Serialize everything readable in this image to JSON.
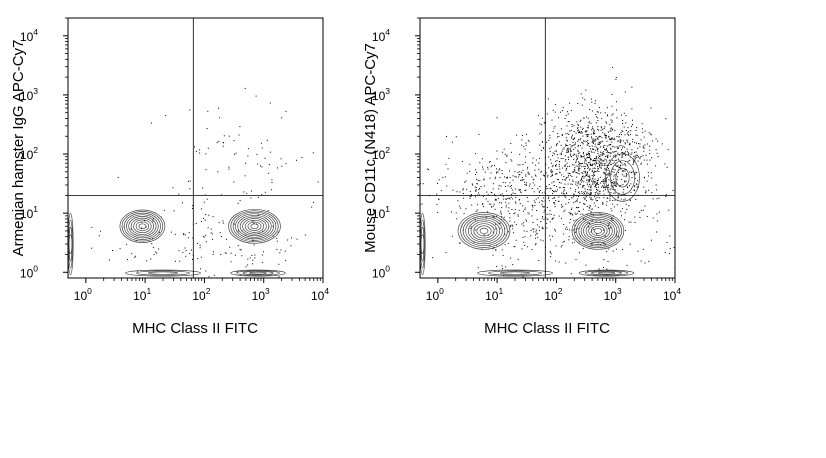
{
  "chart_data": [
    {
      "type": "contour",
      "xlabel": "MHC Class II FITC",
      "ylabel": "Armenian hamster IgG APC-Cy7",
      "x_scale": "log",
      "y_scale": "log",
      "xlim": [
        0.5,
        10000
      ],
      "ylim": [
        0.8,
        20000
      ],
      "x_ticks": [
        {
          "base": "10",
          "exp": "0",
          "value": 1
        },
        {
          "base": "10",
          "exp": "1",
          "value": 10
        },
        {
          "base": "10",
          "exp": "2",
          "value": 100
        },
        {
          "base": "10",
          "exp": "3",
          "value": 1000
        },
        {
          "base": "10",
          "exp": "4",
          "value": 10000
        }
      ],
      "y_ticks": [
        {
          "base": "10",
          "exp": "0",
          "value": 1
        },
        {
          "base": "10",
          "exp": "1",
          "value": 10
        },
        {
          "base": "10",
          "exp": "2",
          "value": 100
        },
        {
          "base": "10",
          "exp": "3",
          "value": 1000
        },
        {
          "base": "10",
          "exp": "4",
          "value": 10000
        }
      ],
      "gate": {
        "x": 65,
        "y": 20
      },
      "populations": [
        {
          "x": 9,
          "y": 6,
          "sx": 0.33,
          "sy": 0.24,
          "rings": 9
        },
        {
          "x": 700,
          "y": 6,
          "sx": 0.38,
          "sy": 0.25,
          "rings": 10
        },
        {
          "x": 20,
          "y": 0.97,
          "sx": 0.55,
          "sy": 0.045,
          "rings": 3
        },
        {
          "x": 800,
          "y": 0.97,
          "sx": 0.4,
          "sy": 0.045,
          "rings": 4
        },
        {
          "x": 0.55,
          "y": 3,
          "sx": 0.04,
          "sy": 0.45,
          "rings": 4
        }
      ],
      "scatter": [
        {
          "x": 50,
          "y": 30,
          "sx": 1.0,
          "sy": 0.8,
          "n": 40
        },
        {
          "x": 600,
          "y": 80,
          "sx": 0.6,
          "sy": 0.6,
          "n": 55
        },
        {
          "x": 100,
          "y": 3,
          "sx": 0.9,
          "sy": 0.4,
          "n": 160
        }
      ]
    },
    {
      "type": "contour",
      "xlabel": "MHC Class II FITC",
      "ylabel": "Mouse CD11c (N418) APC-Cy7",
      "x_scale": "log",
      "y_scale": "log",
      "xlim": [
        0.5,
        10000
      ],
      "ylim": [
        0.8,
        20000
      ],
      "x_ticks": [
        {
          "base": "10",
          "exp": "0",
          "value": 1
        },
        {
          "base": "10",
          "exp": "1",
          "value": 10
        },
        {
          "base": "10",
          "exp": "2",
          "value": 100
        },
        {
          "base": "10",
          "exp": "3",
          "value": 1000
        },
        {
          "base": "10",
          "exp": "4",
          "value": 10000
        }
      ],
      "y_ticks": [
        {
          "base": "10",
          "exp": "0",
          "value": 1
        },
        {
          "base": "10",
          "exp": "1",
          "value": 10
        },
        {
          "base": "10",
          "exp": "2",
          "value": 100
        },
        {
          "base": "10",
          "exp": "3",
          "value": 1000
        },
        {
          "base": "10",
          "exp": "4",
          "value": 10000
        }
      ],
      "gate": {
        "x": 65,
        "y": 20
      },
      "populations": [
        {
          "x": 6,
          "y": 5,
          "sx": 0.38,
          "sy": 0.27,
          "rings": 9
        },
        {
          "x": 500,
          "y": 5,
          "sx": 0.38,
          "sy": 0.27,
          "rings": 10
        },
        {
          "x": 20,
          "y": 0.97,
          "sx": 0.55,
          "sy": 0.045,
          "rings": 3
        },
        {
          "x": 700,
          "y": 0.97,
          "sx": 0.4,
          "sy": 0.045,
          "rings": 4
        },
        {
          "x": 0.55,
          "y": 3,
          "sx": 0.04,
          "sy": 0.45,
          "rings": 4
        },
        {
          "x": 1300,
          "y": 40,
          "sx": 0.25,
          "sy": 0.35,
          "rings": 3
        }
      ],
      "scatter": [
        {
          "x": 20,
          "y": 25,
          "sx": 0.7,
          "sy": 0.35,
          "n": 420
        },
        {
          "x": 500,
          "y": 70,
          "sx": 0.45,
          "sy": 0.45,
          "n": 1200
        },
        {
          "x": 80,
          "y": 5,
          "sx": 1.0,
          "sy": 0.45,
          "n": 260
        }
      ]
    }
  ]
}
